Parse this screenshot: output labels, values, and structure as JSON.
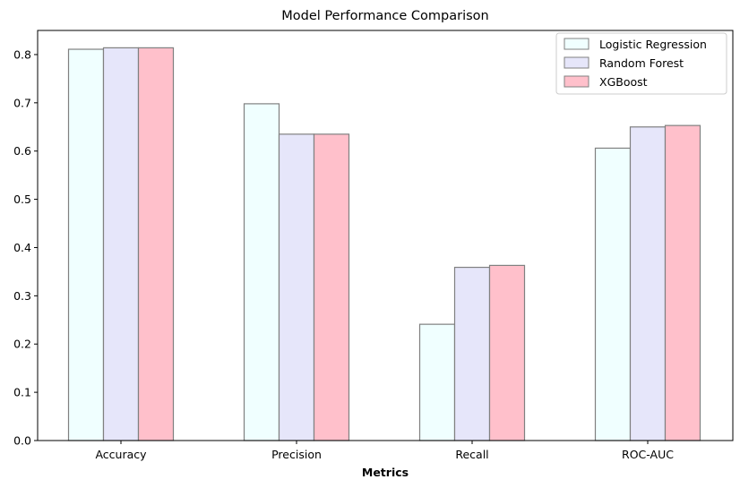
{
  "chart_data": {
    "type": "bar",
    "title": "Model Performance Comparison",
    "xlabel": "Metrics",
    "ylabel": "",
    "categories": [
      "Accuracy",
      "Precision",
      "Recall",
      "ROC-AUC"
    ],
    "ylim": [
      0,
      0.85
    ],
    "yticks": [
      "0.0",
      "0.1",
      "0.2",
      "0.3",
      "0.4",
      "0.5",
      "0.6",
      "0.7",
      "0.8"
    ],
    "grid": false,
    "legend_position": "top-right",
    "bar_edge_color": "#808080",
    "series": [
      {
        "name": "Logistic Regression",
        "color": "#f0ffff",
        "values": [
          0.811,
          0.698,
          0.241,
          0.606
        ]
      },
      {
        "name": "Random Forest",
        "color": "#e6e6fa",
        "values": [
          0.814,
          0.635,
          0.359,
          0.65
        ]
      },
      {
        "name": "XGBoost",
        "color": "#ffc0cb",
        "values": [
          0.814,
          0.635,
          0.363,
          0.653
        ]
      }
    ]
  }
}
